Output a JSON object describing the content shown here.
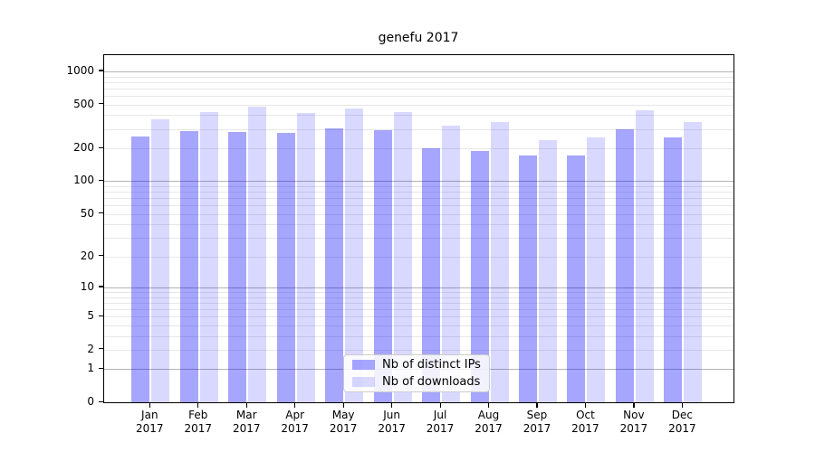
{
  "chart_data": {
    "type": "bar",
    "title": "genefu 2017",
    "categories": [
      "Jan",
      "Feb",
      "Mar",
      "Apr",
      "May",
      "Jun",
      "Jul",
      "Aug",
      "Sep",
      "Oct",
      "Nov",
      "Dec"
    ],
    "x_year_label": "2017",
    "series": [
      {
        "name": "Nb of distinct IPs",
        "color": "rgba(0,0,255,0.35)",
        "values": [
          258,
          288,
          280,
          275,
          306,
          295,
          200,
          190,
          171,
          173,
          296,
          250
        ]
      },
      {
        "name": "Nb of downloads",
        "color": "rgba(0,0,255,0.15)",
        "values": [
          365,
          428,
          475,
          416,
          463,
          428,
          322,
          345,
          238,
          253,
          447,
          347
        ]
      }
    ],
    "y_axis": {
      "scale": "log1p",
      "ticks": [
        1000,
        500,
        200,
        100,
        50,
        20,
        10,
        5,
        2,
        1,
        0
      ],
      "ylim": [
        0,
        1400
      ]
    },
    "grid": {
      "major_at": [
        1,
        10,
        100,
        1000
      ],
      "major_color": "#b3b3b3",
      "minor_color": "#e7e7e7"
    },
    "legend": {
      "position": "lower-center"
    },
    "colors": {
      "spine": "#000000",
      "background": "#ffffff"
    }
  }
}
